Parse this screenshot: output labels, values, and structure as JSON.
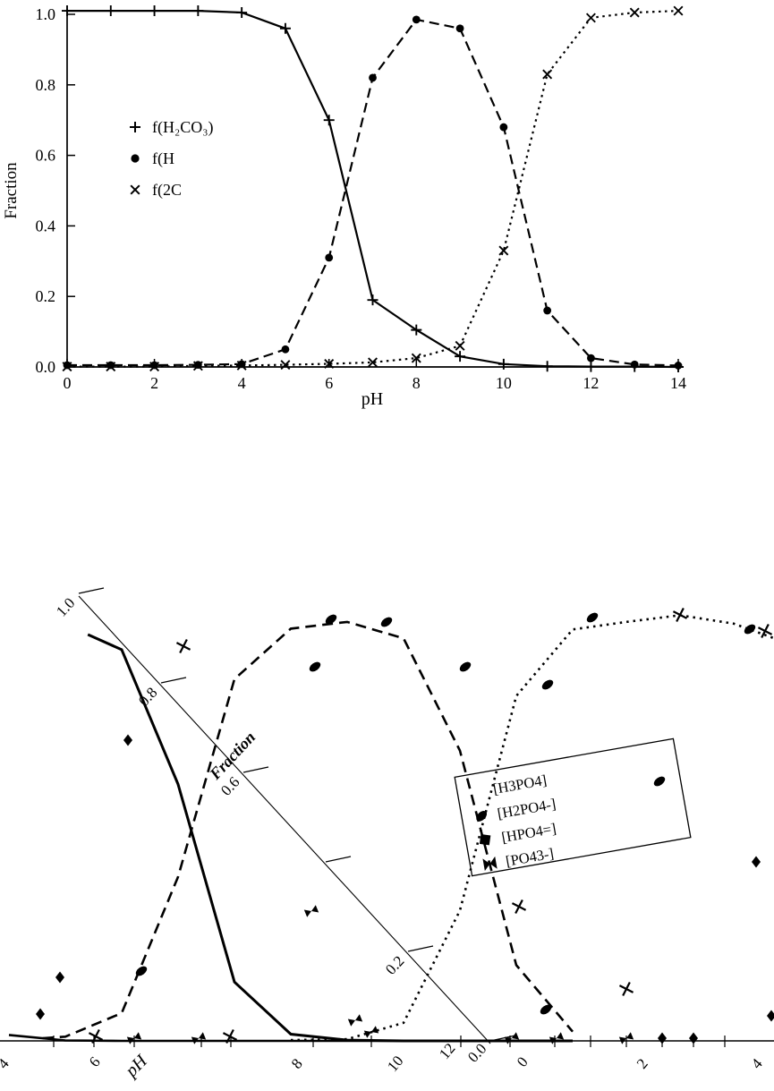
{
  "page": {
    "background": "#ffffff",
    "ink": "#000000"
  },
  "chart_data": [
    {
      "id": "carbonate-speciation",
      "type": "line",
      "title": "",
      "xlabel": "pH",
      "ylabel": "Fraction",
      "xlim": [
        0,
        14
      ],
      "ylim": [
        0.0,
        1.0
      ],
      "xticks": [
        0,
        2,
        4,
        6,
        8,
        10,
        12,
        14
      ],
      "yticks": [
        0.0,
        0.2,
        0.4,
        0.6,
        0.8,
        1.0
      ],
      "grid": "off",
      "legend_position": "inside-upper-left",
      "x": [
        0,
        1,
        2,
        3,
        4,
        5,
        6,
        7,
        8,
        9,
        10,
        11,
        12,
        13,
        14
      ],
      "series": [
        {
          "name": "f(H2CO3)",
          "legend_label": "f(H₂CO₃)",
          "marker": "plus",
          "line": "solid",
          "values": [
            1.01,
            1.01,
            1.01,
            1.01,
            1.005,
            0.96,
            0.7,
            0.19,
            0.105,
            0.03,
            0.008,
            0.002,
            0.001,
            0.001,
            0.0
          ]
        },
        {
          "name": "f(HCO3-)",
          "legend_label": "f(H",
          "marker": "circle",
          "line": "dashed",
          "values": [
            0.005,
            0.005,
            0.005,
            0.006,
            0.008,
            0.05,
            0.31,
            0.82,
            0.985,
            0.96,
            0.68,
            0.16,
            0.025,
            0.007,
            0.004
          ]
        },
        {
          "name": "f(CO3 2-)",
          "legend_label": "f(2C",
          "marker": "x",
          "line": "dotted",
          "values": [
            0.001,
            0.001,
            0.001,
            0.003,
            0.004,
            0.006,
            0.009,
            0.013,
            0.025,
            0.06,
            0.33,
            0.83,
            0.99,
            1.005,
            1.01
          ]
        }
      ]
    },
    {
      "id": "phosphate-speciation-rotated",
      "type": "line",
      "title": "",
      "xlabel": "pH",
      "ylabel": "Fraction",
      "xtick_labels": [
        "4",
        "6",
        "8",
        "10",
        "12",
        "0",
        "2",
        "4"
      ],
      "ytick_labels": [
        "1.0",
        "0.8",
        "0.6",
        "0.2",
        "0.0"
      ],
      "ylim": [
        0.0,
        1.0
      ],
      "grid": "off",
      "legend_position": "inside-right",
      "legend": [
        "[H3PO4]",
        "[H2PO4-]",
        "[HPO4=]",
        "[PO43-]"
      ],
      "x": [
        0,
        2,
        4,
        5,
        6,
        7,
        8,
        9,
        10,
        11,
        12,
        13,
        14
      ],
      "series": [
        {
          "name": "[H3PO4]",
          "marker": "none",
          "line": "solid",
          "values": [
            0.99,
            0.59,
            0.014,
            0.001,
            0,
            0,
            0,
            0,
            0,
            0,
            0,
            0,
            0
          ]
        },
        {
          "name": "[H2PO4-]",
          "marker": "ellipse",
          "line": "solid",
          "values": [
            0.01,
            0.41,
            0.985,
            0.99,
            0.93,
            0.61,
            0.14,
            0.016,
            0.002,
            0,
            0,
            0,
            0
          ]
        },
        {
          "name": "[HPO4=]",
          "marker": "square",
          "line": "dashed",
          "values": [
            0,
            0,
            0.001,
            0.01,
            0.066,
            0.39,
            0.86,
            0.98,
            0.996,
            0.957,
            0.69,
            0.18,
            0.022
          ]
        },
        {
          "name": "[PO43-]",
          "marker": "bowtie",
          "line": "dotted",
          "values": [
            0,
            0,
            0,
            0,
            0,
            0,
            0,
            0.002,
            0.004,
            0.043,
            0.31,
            0.82,
            0.978
          ]
        }
      ]
    }
  ]
}
